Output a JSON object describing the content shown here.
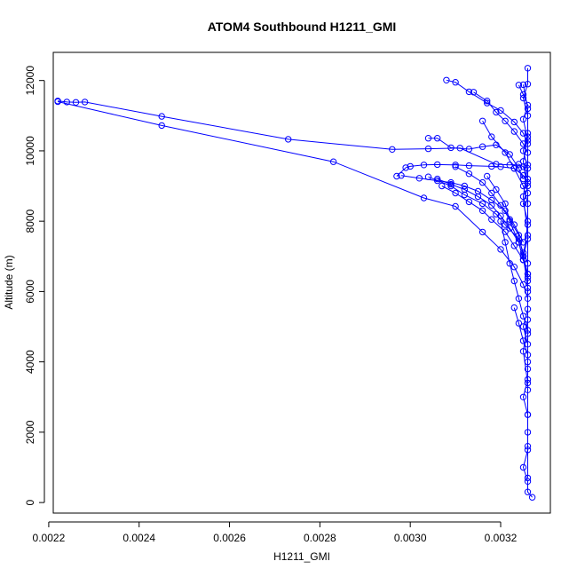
{
  "chart_data": {
    "type": "scatter",
    "title": "ATOM4 Southbound H1211_GMI",
    "xlabel": "H1211_GMI",
    "ylabel": "Altitude (m)",
    "xlim": [
      0.00221,
      0.00331
    ],
    "ylim": [
      -300,
      12800
    ],
    "xticks": [
      "0.0022",
      "0.0024",
      "0.0026",
      "0.0028",
      "0.0030",
      "0.0032"
    ],
    "xtick_values": [
      0.0022,
      0.0024,
      0.0026,
      0.0028,
      0.003,
      0.0032
    ],
    "yticks": [
      "0",
      "2000",
      "4000",
      "6000",
      "8000",
      "10000",
      "12000"
    ],
    "ytick_values": [
      0,
      2000,
      4000,
      6000,
      8000,
      10000,
      12000
    ],
    "color": "#0000ff",
    "grid": false,
    "marker": "open-circle",
    "lines": true,
    "series": [
      {
        "x": [
          0.00222,
          0.00224,
          0.00226,
          0.00228,
          0.00245,
          0.00273,
          0.00296,
          0.00304,
          0.00311,
          0.00319,
          0.00322,
          0.00324,
          0.00325,
          0.00326
        ],
        "y": [
          11420,
          11390,
          11380,
          11390,
          10980,
          10330,
          10040,
          10060,
          10080,
          9620,
          9600,
          9620,
          9550,
          9200
        ]
      },
      {
        "x": [
          0.00222,
          0.00245,
          0.00283,
          0.00303,
          0.0031,
          0.00316,
          0.0032,
          0.00323,
          0.00325,
          0.00326
        ],
        "y": [
          11400,
          10720,
          9690,
          8660,
          8420,
          7690,
          7200,
          6700,
          6200,
          5800
        ]
      },
      {
        "x": [
          0.00297,
          0.00299,
          0.003,
          0.00303,
          0.00306,
          0.0031,
          0.00313,
          0.00318,
          0.0032,
          0.00323,
          0.00325,
          0.00326
        ],
        "y": [
          9280,
          9520,
          9560,
          9600,
          9610,
          9600,
          9580,
          9560,
          9550,
          9500,
          9300,
          9100
        ]
      },
      {
        "x": [
          0.00304,
          0.00306,
          0.00309,
          0.00313,
          0.00316,
          0.00319,
          0.00322,
          0.00324,
          0.00325
        ],
        "y": [
          10360,
          10360,
          10090,
          10050,
          10120,
          10170,
          9900,
          9500,
          9200
        ]
      },
      {
        "x": [
          0.00308,
          0.0031,
          0.00313,
          0.00317,
          0.0032,
          0.00323,
          0.00325,
          0.00326
        ],
        "y": [
          12010,
          11950,
          11680,
          11360,
          11150,
          10820,
          10500,
          10200
        ]
      },
      {
        "x": [
          0.00314,
          0.00317,
          0.00319,
          0.00321,
          0.00323,
          0.00325,
          0.00326
        ],
        "y": [
          11670,
          11420,
          11100,
          10850,
          10550,
          10200,
          9950
        ]
      },
      {
        "x": [
          0.00304,
          0.00309,
          0.00312,
          0.00316,
          0.00319,
          0.00321,
          0.00324,
          0.00325,
          0.00326
        ],
        "y": [
          9260,
          9000,
          8750,
          8500,
          8200,
          7900,
          7500,
          7100,
          6800
        ]
      },
      {
        "x": [
          0.00298,
          0.00302,
          0.00306,
          0.00309,
          0.00312,
          0.00315,
          0.00318,
          0.00321,
          0.00323,
          0.00325
        ],
        "y": [
          9300,
          9220,
          9150,
          9100,
          9000,
          8850,
          8600,
          8300,
          7900,
          7400
        ]
      },
      {
        "x": [
          0.00307,
          0.0031,
          0.00313,
          0.00316,
          0.00318,
          0.00321,
          0.00323,
          0.00325,
          0.00326
        ],
        "y": [
          9000,
          8800,
          8550,
          8300,
          8050,
          7700,
          7300,
          6900,
          6500
        ]
      },
      {
        "x": [
          0.0031,
          0.00313,
          0.00316,
          0.00318,
          0.0032,
          0.00322,
          0.00324,
          0.00325
        ],
        "y": [
          9550,
          9350,
          9100,
          8800,
          8450,
          8050,
          7600,
          7000
        ]
      },
      {
        "x": [
          0.00317,
          0.00319,
          0.00321,
          0.00322,
          0.00324,
          0.00325,
          0.00326
        ],
        "y": [
          9280,
          8900,
          8500,
          8000,
          7400,
          6900,
          6400
        ]
      },
      {
        "x": [
          0.0032,
          0.00321,
          0.00322,
          0.00323,
          0.00324,
          0.00325,
          0.00326
        ],
        "y": [
          8000,
          7400,
          6800,
          6300,
          5800,
          5300,
          4900
        ]
      },
      {
        "x": [
          0.00323,
          0.00324,
          0.00325,
          0.00326,
          0.00326
        ],
        "y": [
          5540,
          5100,
          4600,
          4200,
          3800
        ]
      },
      {
        "x": [
          0.00326,
          0.00326,
          0.00325,
          0.00326,
          0.00326,
          0.00325,
          0.00326,
          0.00326,
          0.00325,
          0.00326,
          0.00326,
          0.00325,
          0.00326,
          0.00326,
          0.00326,
          0.00325,
          0.00326,
          0.00326,
          0.00326,
          0.00325,
          0.00326,
          0.00326,
          0.00326,
          0.00325,
          0.00326,
          0.00326,
          0.00327
        ],
        "y": [
          12350,
          11900,
          11500,
          11000,
          10500,
          10000,
          9500,
          9000,
          8500,
          8000,
          7500,
          7000,
          6500,
          6000,
          5500,
          5000,
          4500,
          4000,
          3500,
          3000,
          2500,
          2000,
          1500,
          1000,
          600,
          300,
          150
        ]
      },
      {
        "x": [
          0.00325,
          0.00326,
          0.00326,
          0.00325,
          0.00326,
          0.00326,
          0.00325,
          0.00326,
          0.00326,
          0.00325,
          0.00326,
          0.00326,
          0.00326,
          0.00326
        ],
        "y": [
          11880,
          11200,
          10400,
          9700,
          8800,
          7900,
          7000,
          6100,
          5200,
          4300,
          3400,
          2500,
          1600,
          700
        ]
      },
      {
        "x": [
          0.00324,
          0.00325,
          0.00326,
          0.00325,
          0.00326,
          0.00326,
          0.00325,
          0.00326,
          0.00326,
          0.00326,
          0.00326
        ],
        "y": [
          11870,
          11600,
          11300,
          10900,
          10300,
          9600,
          8700,
          7600,
          6300,
          4800,
          3200
        ]
      },
      {
        "x": [
          0.00316,
          0.00318,
          0.00321,
          0.00323,
          0.00325,
          0.00326
        ],
        "y": [
          10850,
          10400,
          9950,
          9500,
          9000,
          8500
        ]
      },
      {
        "x": [
          0.00306,
          0.00309,
          0.00312,
          0.00315,
          0.00318,
          0.0032,
          0.00322,
          0.00324,
          0.00325
        ],
        "y": [
          9200,
          9050,
          8900,
          8700,
          8450,
          8150,
          7800,
          7400,
          6900
        ]
      }
    ]
  }
}
